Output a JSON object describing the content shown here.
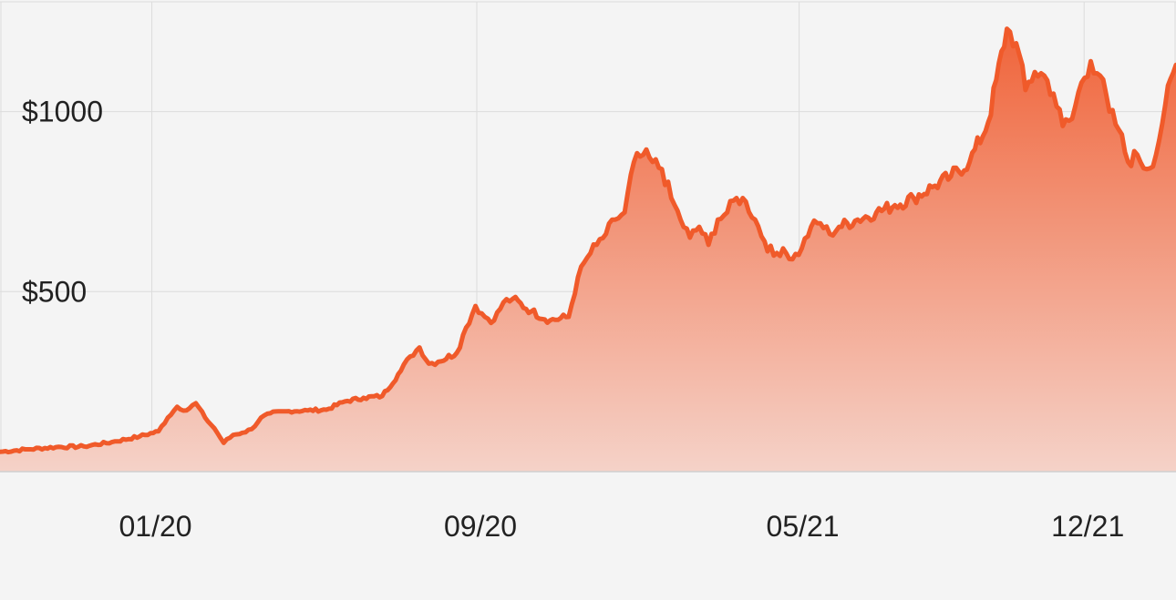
{
  "chart_data": {
    "type": "area",
    "title": "",
    "xlabel": "",
    "ylabel": "",
    "grid": true,
    "legend": "none",
    "ylim": [
      0,
      1310
    ],
    "x_range": [
      "2019-09-09",
      "2022-02-08"
    ],
    "y_ticks": [
      {
        "value": 500,
        "label": "$500"
      },
      {
        "value": 1000,
        "label": "$1000"
      }
    ],
    "x_ticks": [
      {
        "value": "2020-01-01",
        "label": "01/20"
      },
      {
        "value": "2020-09-01",
        "label": "09/20"
      },
      {
        "value": "2021-05-01",
        "label": "05/21"
      },
      {
        "value": "2021-12-01",
        "label": "12/21"
      }
    ],
    "colors": {
      "line": "#f05a2a",
      "fill_top": "#f0643a",
      "fill_bottom": "#f5d2c8",
      "background": "#f4f4f4"
    },
    "series": [
      {
        "x": [
          "2019-09-09",
          "2019-09-30",
          "2019-10-21",
          "2019-11-11",
          "2019-12-02",
          "2019-12-23",
          "2020-01-06",
          "2020-01-13",
          "2020-01-20",
          "2020-01-27",
          "2020-02-03",
          "2020-02-10",
          "2020-02-17",
          "2020-02-24",
          "2020-03-02",
          "2020-03-09",
          "2020-03-16",
          "2020-03-23",
          "2020-03-30",
          "2020-04-13",
          "2020-04-27",
          "2020-05-11",
          "2020-05-25",
          "2020-06-08",
          "2020-06-22",
          "2020-07-06",
          "2020-07-13",
          "2020-07-20",
          "2020-07-27",
          "2020-08-03",
          "2020-08-17",
          "2020-08-24",
          "2020-08-31",
          "2020-09-07",
          "2020-09-14",
          "2020-09-21",
          "2020-09-28",
          "2020-10-12",
          "2020-10-26",
          "2020-11-09",
          "2020-11-16",
          "2020-11-23",
          "2020-11-30",
          "2020-12-07",
          "2020-12-14",
          "2020-12-21",
          "2020-12-28",
          "2021-01-04",
          "2021-01-11",
          "2021-01-18",
          "2021-01-25",
          "2021-02-01",
          "2021-02-08",
          "2021-02-15",
          "2021-02-22",
          "2021-03-01",
          "2021-03-08",
          "2021-03-15",
          "2021-03-22",
          "2021-03-29",
          "2021-04-05",
          "2021-04-12",
          "2021-04-19",
          "2021-04-26",
          "2021-05-03",
          "2021-05-10",
          "2021-05-17",
          "2021-05-24",
          "2021-05-31",
          "2021-06-14",
          "2021-06-28",
          "2021-07-12",
          "2021-07-26",
          "2021-08-09",
          "2021-08-23",
          "2021-09-06",
          "2021-09-20",
          "2021-10-04",
          "2021-10-11",
          "2021-10-18",
          "2021-10-25",
          "2021-11-01",
          "2021-11-08",
          "2021-11-15",
          "2021-11-22",
          "2021-11-29",
          "2021-12-06",
          "2021-12-13",
          "2021-12-20",
          "2021-12-27",
          "2022-01-03",
          "2022-01-10",
          "2022-01-17",
          "2022-01-24",
          "2022-01-31",
          "2022-02-08"
        ],
        "y": [
          55,
          62,
          68,
          70,
          82,
          98,
          112,
          150,
          180,
          170,
          190,
          150,
          120,
          80,
          102,
          108,
          118,
          150,
          162,
          168,
          170,
          172,
          195,
          205,
          210,
          280,
          320,
          345,
          300,
          305,
          330,
          400,
          460,
          430,
          420,
          470,
          480,
          445,
          420,
          430,
          540,
          595,
          630,
          660,
          700,
          720,
          860,
          880,
          860,
          840,
          760,
          700,
          650,
          680,
          630,
          700,
          720,
          760,
          750,
          700,
          640,
          600,
          620,
          590,
          620,
          680,
          690,
          660,
          680,
          700,
          720,
          740,
          760,
          790,
          820,
          860,
          970,
          1230,
          1190,
          1060,
          1110,
          1100,
          1050,
          960,
          980,
          1080,
          1140,
          1100,
          1000,
          950,
          860,
          880,
          840,
          880,
          1020,
          1130
        ]
      }
    ]
  }
}
